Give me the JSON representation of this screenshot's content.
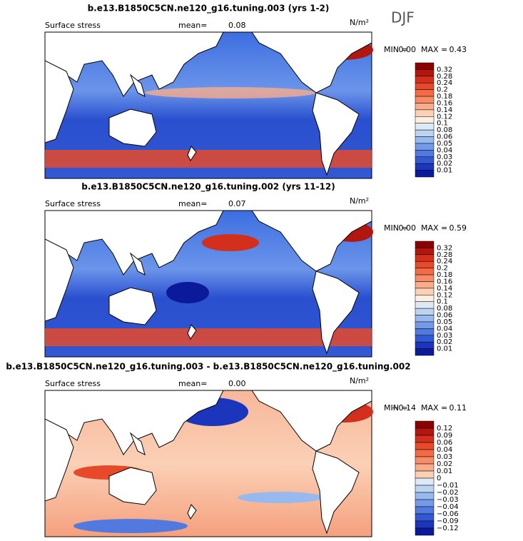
{
  "header": {
    "season": "DJF"
  },
  "panels": [
    {
      "title": "b.e13.B1850C5CN.ne120_g16.tuning.003 (yrs 1-2)",
      "variable": "Surface stress",
      "mean_label": "mean=",
      "mean": "0.08",
      "units": "N/m²",
      "min_label": "MIN =",
      "min": "0.00",
      "max_label": "MAX =",
      "max": "0.43",
      "colorbar": {
        "labels": [
          "0.32",
          "0.28",
          "0.24",
          "0.2",
          "0.18",
          "0.16",
          "0.14",
          "0.12",
          "0.1",
          "0.08",
          "0.06",
          "0.05",
          "0.04",
          "0.03",
          "0.02",
          "0.01"
        ],
        "colors": [
          "#8b0000",
          "#b2170f",
          "#d2301c",
          "#e64a2a",
          "#f26b45",
          "#f78d66",
          "#f7ad8c",
          "#fbd0b5",
          "#fdeee2",
          "#dde9f7",
          "#bcd4f2",
          "#98b9ee",
          "#7499e6",
          "#5279de",
          "#3358d4",
          "#1c35bd",
          "#0a1a9a"
        ]
      }
    },
    {
      "title": "b.e13.B1850C5CN.ne120_g16.tuning.002 (yrs 11-12)",
      "variable": "Surface stress",
      "mean_label": "mean=",
      "mean": "0.07",
      "units": "N/m²",
      "min_label": "MIN =",
      "min": "0.00",
      "max_label": "MAX =",
      "max": "0.59",
      "colorbar": {
        "labels": [
          "0.32",
          "0.28",
          "0.24",
          "0.2",
          "0.18",
          "0.16",
          "0.14",
          "0.12",
          "0.1",
          "0.08",
          "0.06",
          "0.05",
          "0.04",
          "0.03",
          "0.02",
          "0.01"
        ],
        "colors": [
          "#8b0000",
          "#b2170f",
          "#d2301c",
          "#e64a2a",
          "#f26b45",
          "#f78d66",
          "#f7ad8c",
          "#fbd0b5",
          "#fdeee2",
          "#dde9f7",
          "#bcd4f2",
          "#98b9ee",
          "#7499e6",
          "#5279de",
          "#3358d4",
          "#1c35bd",
          "#0a1a9a"
        ]
      }
    },
    {
      "title": "b.e13.B1850C5CN.ne120_g16.tuning.003 - b.e13.B1850C5CN.ne120_g16.tuning.002",
      "variable": "Surface stress",
      "mean_label": "mean=",
      "mean": "0.00",
      "units": "N/m²",
      "min_label": "MIN =",
      "min": "−0.14",
      "max_label": "MAX =",
      "max": "0.11",
      "colorbar": {
        "labels": [
          "0.12",
          "0.09",
          "0.06",
          "0.04",
          "0.03",
          "0.02",
          "0.01",
          "0",
          "−0.01",
          "−0.02",
          "−0.03",
          "−0.04",
          "−0.06",
          "−0.09",
          "−0.12"
        ],
        "colors": [
          "#8b0000",
          "#b2170f",
          "#d2301c",
          "#e64a2a",
          "#f26b45",
          "#f78d66",
          "#f7ad8c",
          "#fbd0b5",
          "#dde9f7",
          "#bcd4f2",
          "#98b9ee",
          "#7499e6",
          "#5279de",
          "#3358d4",
          "#1c35bd",
          "#0a1a9a"
        ]
      }
    }
  ]
}
